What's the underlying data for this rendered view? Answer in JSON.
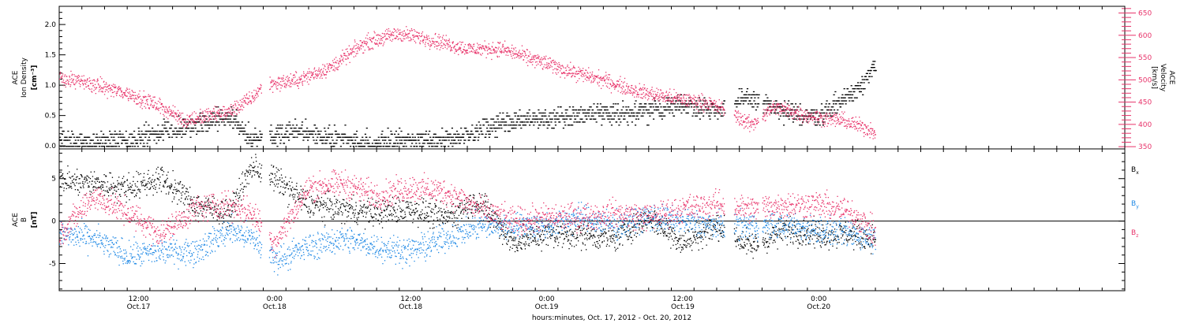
{
  "chart_data": [
    {
      "type": "scatter",
      "panel": "top",
      "x_range": [
        "2012-10-17T05:00",
        "2012-10-21T03:00"
      ],
      "left_axis": {
        "label_lines": [
          "ACE",
          "Ion Density"
        ],
        "unit": "[cm⁻³]",
        "ylim": [
          -0.05,
          2.3
        ],
        "ticks": [
          0.0,
          0.5,
          1.0,
          1.5,
          2.0
        ],
        "tick_labels": [
          "0.0",
          "0.5",
          "1.0",
          "1.5",
          "2.0"
        ]
      },
      "right_axis": {
        "label_lines": [
          "ACE",
          "Velocity"
        ],
        "unit": "[km/s]",
        "ylim": [
          345,
          665
        ],
        "ticks": [
          350,
          400,
          450,
          500,
          550,
          600,
          650
        ],
        "tick_labels": [
          "350",
          "400",
          "450",
          "500",
          "550",
          "600",
          "650"
        ]
      },
      "series": [
        {
          "axis": "left",
          "color": "#000000",
          "points": [
            [
              "2012-10-17T05:00",
              0.1
            ],
            [
              "2012-10-17T08:00",
              0.05
            ],
            [
              "2012-10-17T11:00",
              0.1
            ],
            [
              "2012-10-17T14:00",
              0.25
            ],
            [
              "2012-10-17T17:00",
              0.35
            ],
            [
              "2012-10-17T20:00",
              0.5
            ],
            [
              "2012-10-17T22:00",
              0.1
            ],
            [
              "2012-10-18T02:00",
              0.25
            ],
            [
              "2012-10-18T05:00",
              0.15
            ],
            [
              "2012-10-18T08:00",
              0.05
            ],
            [
              "2012-10-18T11:00",
              0.1
            ],
            [
              "2012-10-18T14:00",
              0.1
            ],
            [
              "2012-10-18T17:00",
              0.15
            ],
            [
              "2012-10-18T20:00",
              0.4
            ],
            [
              "2012-10-19T00:00",
              0.45
            ],
            [
              "2012-10-19T04:00",
              0.55
            ],
            [
              "2012-10-19T08:00",
              0.55
            ],
            [
              "2012-10-19T12:00",
              0.7
            ],
            [
              "2012-10-19T15:00",
              0.6
            ],
            [
              "2012-10-19T18:00",
              0.8
            ],
            [
              "2012-10-19T21:00",
              0.55
            ],
            [
              "2012-10-20T00:00",
              0.5
            ],
            [
              "2012-10-20T03:00",
              0.9
            ],
            [
              "2012-10-20T05:00",
              1.3
            ]
          ]
        },
        {
          "axis": "right",
          "color": "#e8336a",
          "points": [
            [
              "2012-10-17T05:00",
              505
            ],
            [
              "2012-10-17T08:00",
              490
            ],
            [
              "2012-10-17T11:00",
              470
            ],
            [
              "2012-10-17T14:00",
              440
            ],
            [
              "2012-10-17T16:00",
              410
            ],
            [
              "2012-10-17T18:00",
              420
            ],
            [
              "2012-10-17T20:00",
              430
            ],
            [
              "2012-10-17T22:00",
              460
            ],
            [
              "2012-10-17T23:00",
              490
            ],
            [
              "2012-10-18T02:00",
              500
            ],
            [
              "2012-10-18T05:00",
              530
            ],
            [
              "2012-10-18T08:00",
              585
            ],
            [
              "2012-10-18T11:00",
              605
            ],
            [
              "2012-10-18T14:00",
              590
            ],
            [
              "2012-10-18T17:00",
              570
            ],
            [
              "2012-10-18T20:00",
              570
            ],
            [
              "2012-10-18T23:00",
              545
            ],
            [
              "2012-10-19T02:00",
              520
            ],
            [
              "2012-10-19T05:00",
              500
            ],
            [
              "2012-10-19T08:00",
              475
            ],
            [
              "2012-10-19T11:00",
              460
            ],
            [
              "2012-10-19T14:00",
              450
            ],
            [
              "2012-10-19T16:00",
              430
            ],
            [
              "2012-10-19T18:00",
              400
            ],
            [
              "2012-10-19T20:00",
              440
            ],
            [
              "2012-10-19T23:00",
              420
            ],
            [
              "2012-10-20T02:00",
              410
            ],
            [
              "2012-10-20T05:00",
              385
            ]
          ]
        }
      ],
      "gaps": [
        [
          "2012-10-17T22:50",
          "2012-10-17T23:30"
        ],
        [
          "2012-10-19T15:40",
          "2012-10-19T16:30"
        ],
        [
          "2012-10-19T18:40",
          "2012-10-19T19:00"
        ]
      ]
    },
    {
      "type": "scatter",
      "panel": "bottom",
      "x_range": [
        "2012-10-17T05:00",
        "2012-10-21T03:00"
      ],
      "left_axis": {
        "label_lines": [
          "ACE",
          "B"
        ],
        "unit": "[nT]",
        "ylim": [
          -8.2,
          8.5
        ],
        "ticks": [
          -5,
          0,
          5
        ],
        "tick_labels": [
          "-5",
          "0",
          "5"
        ]
      },
      "zero_line": true,
      "series": [
        {
          "name": "Bx",
          "color": "#000000",
          "points": [
            [
              "2012-10-17T05:00",
              4.8
            ],
            [
              "2012-10-17T08:00",
              4.5
            ],
            [
              "2012-10-17T11:00",
              4.0
            ],
            [
              "2012-10-17T14:00",
              5.0
            ],
            [
              "2012-10-17T17:00",
              2.0
            ],
            [
              "2012-10-17T20:00",
              1.0
            ],
            [
              "2012-10-17T22:00",
              6.5
            ],
            [
              "2012-10-18T00:00",
              5.0
            ],
            [
              "2012-10-18T03:00",
              2.0
            ],
            [
              "2012-10-18T06:00",
              1.5
            ],
            [
              "2012-10-18T09:00",
              1.0
            ],
            [
              "2012-10-18T12:00",
              1.5
            ],
            [
              "2012-10-18T15:00",
              0.5
            ],
            [
              "2012-10-18T18:00",
              2.5
            ],
            [
              "2012-10-18T21:00",
              -2.5
            ],
            [
              "2012-10-19T00:00",
              -1.5
            ],
            [
              "2012-10-19T03:00",
              -1.5
            ],
            [
              "2012-10-19T06:00",
              -2.0
            ],
            [
              "2012-10-19T09:00",
              0.5
            ],
            [
              "2012-10-19T12:00",
              -2.5
            ],
            [
              "2012-10-19T15:00",
              -0.5
            ],
            [
              "2012-10-19T18:00",
              -3.0
            ],
            [
              "2012-10-19T21:00",
              -1.0
            ],
            [
              "2012-10-20T00:00",
              -1.5
            ],
            [
              "2012-10-20T03:00",
              -1.5
            ],
            [
              "2012-10-20T05:00",
              -2.0
            ]
          ]
        },
        {
          "name": "By",
          "color": "#1e88e5",
          "points": [
            [
              "2012-10-17T05:00",
              -1.5
            ],
            [
              "2012-10-17T08:00",
              -2.0
            ],
            [
              "2012-10-17T11:00",
              -4.0
            ],
            [
              "2012-10-17T14:00",
              -3.5
            ],
            [
              "2012-10-17T17:00",
              -3.5
            ],
            [
              "2012-10-17T20:00",
              -1.0
            ],
            [
              "2012-10-17T22:00",
              -2.0
            ],
            [
              "2012-10-18T00:00",
              -4.5
            ],
            [
              "2012-10-18T03:00",
              -3.0
            ],
            [
              "2012-10-18T06:00",
              -2.0
            ],
            [
              "2012-10-18T09:00",
              -3.0
            ],
            [
              "2012-10-18T12:00",
              -3.5
            ],
            [
              "2012-10-18T15:00",
              -2.0
            ],
            [
              "2012-10-18T18:00",
              -0.5
            ],
            [
              "2012-10-18T21:00",
              -0.5
            ],
            [
              "2012-10-19T00:00",
              -0.5
            ],
            [
              "2012-10-19T03:00",
              0.5
            ],
            [
              "2012-10-19T06:00",
              -0.5
            ],
            [
              "2012-10-19T09:00",
              0.5
            ],
            [
              "2012-10-19T12:00",
              0.0
            ],
            [
              "2012-10-19T15:00",
              -0.5
            ],
            [
              "2012-10-19T18:00",
              -0.5
            ],
            [
              "2012-10-19T21:00",
              -0.5
            ],
            [
              "2012-10-20T00:00",
              -1.0
            ],
            [
              "2012-10-20T03:00",
              -1.5
            ],
            [
              "2012-10-20T05:00",
              -2.0
            ]
          ]
        },
        {
          "name": "Bz",
          "color": "#e8336a",
          "points": [
            [
              "2012-10-17T05:00",
              -1.5
            ],
            [
              "2012-10-17T08:00",
              3.0
            ],
            [
              "2012-10-17T11:00",
              1.0
            ],
            [
              "2012-10-17T14:00",
              -1.5
            ],
            [
              "2012-10-17T17:00",
              1.5
            ],
            [
              "2012-10-17T20:00",
              2.0
            ],
            [
              "2012-10-17T22:00",
              1.0
            ],
            [
              "2012-10-18T00:00",
              -2.5
            ],
            [
              "2012-10-18T03:00",
              4.0
            ],
            [
              "2012-10-18T06:00",
              4.5
            ],
            [
              "2012-10-18T09:00",
              3.0
            ],
            [
              "2012-10-18T12:00",
              4.0
            ],
            [
              "2012-10-18T15:00",
              3.5
            ],
            [
              "2012-10-18T18:00",
              1.5
            ],
            [
              "2012-10-18T21:00",
              0.0
            ],
            [
              "2012-10-19T00:00",
              0.5
            ],
            [
              "2012-10-19T03:00",
              0.5
            ],
            [
              "2012-10-19T06:00",
              1.0
            ],
            [
              "2012-10-19T09:00",
              0.5
            ],
            [
              "2012-10-19T12:00",
              1.5
            ],
            [
              "2012-10-19T15:00",
              2.0
            ],
            [
              "2012-10-19T18:00",
              1.5
            ],
            [
              "2012-10-19T21:00",
              2.0
            ],
            [
              "2012-10-20T00:00",
              2.0
            ],
            [
              "2012-10-20T03:00",
              1.0
            ],
            [
              "2012-10-20T05:00",
              -1.5
            ]
          ]
        }
      ],
      "legend": {
        "placement": "right",
        "entries": [
          {
            "text": "B",
            "sub": "x",
            "color": "#000000"
          },
          {
            "text": "B",
            "sub": "y",
            "color": "#1e88e5"
          },
          {
            "text": "B",
            "sub": "z",
            "color": "#e8336a"
          }
        ]
      },
      "gaps": [
        [
          "2012-10-17T22:50",
          "2012-10-17T23:30"
        ],
        [
          "2012-10-19T15:40",
          "2012-10-19T16:30"
        ],
        [
          "2012-10-19T18:40",
          "2012-10-19T19:00"
        ]
      ]
    }
  ],
  "x_axis": {
    "major_ticks": [
      {
        "t": "2012-10-17T12:00",
        "line1": "12:00",
        "line2": "Oct.17"
      },
      {
        "t": "2012-10-18T00:00",
        "line1": "0:00",
        "line2": "Oct.18"
      },
      {
        "t": "2012-10-18T12:00",
        "line1": "12:00",
        "line2": "Oct.18"
      },
      {
        "t": "2012-10-19T00:00",
        "line1": "0:00",
        "line2": "Oct.19"
      },
      {
        "t": "2012-10-19T12:00",
        "line1": "12:00",
        "line2": "Oct.19"
      },
      {
        "t": "2012-10-20T00:00",
        "line1": "0:00",
        "line2": "Oct.20"
      }
    ],
    "title": "hours:minutes, Oct. 17, 2012 - Oct. 20, 2012"
  },
  "colors": {
    "black": "#000000",
    "blue": "#1e88e5",
    "pink": "#e8336a"
  }
}
